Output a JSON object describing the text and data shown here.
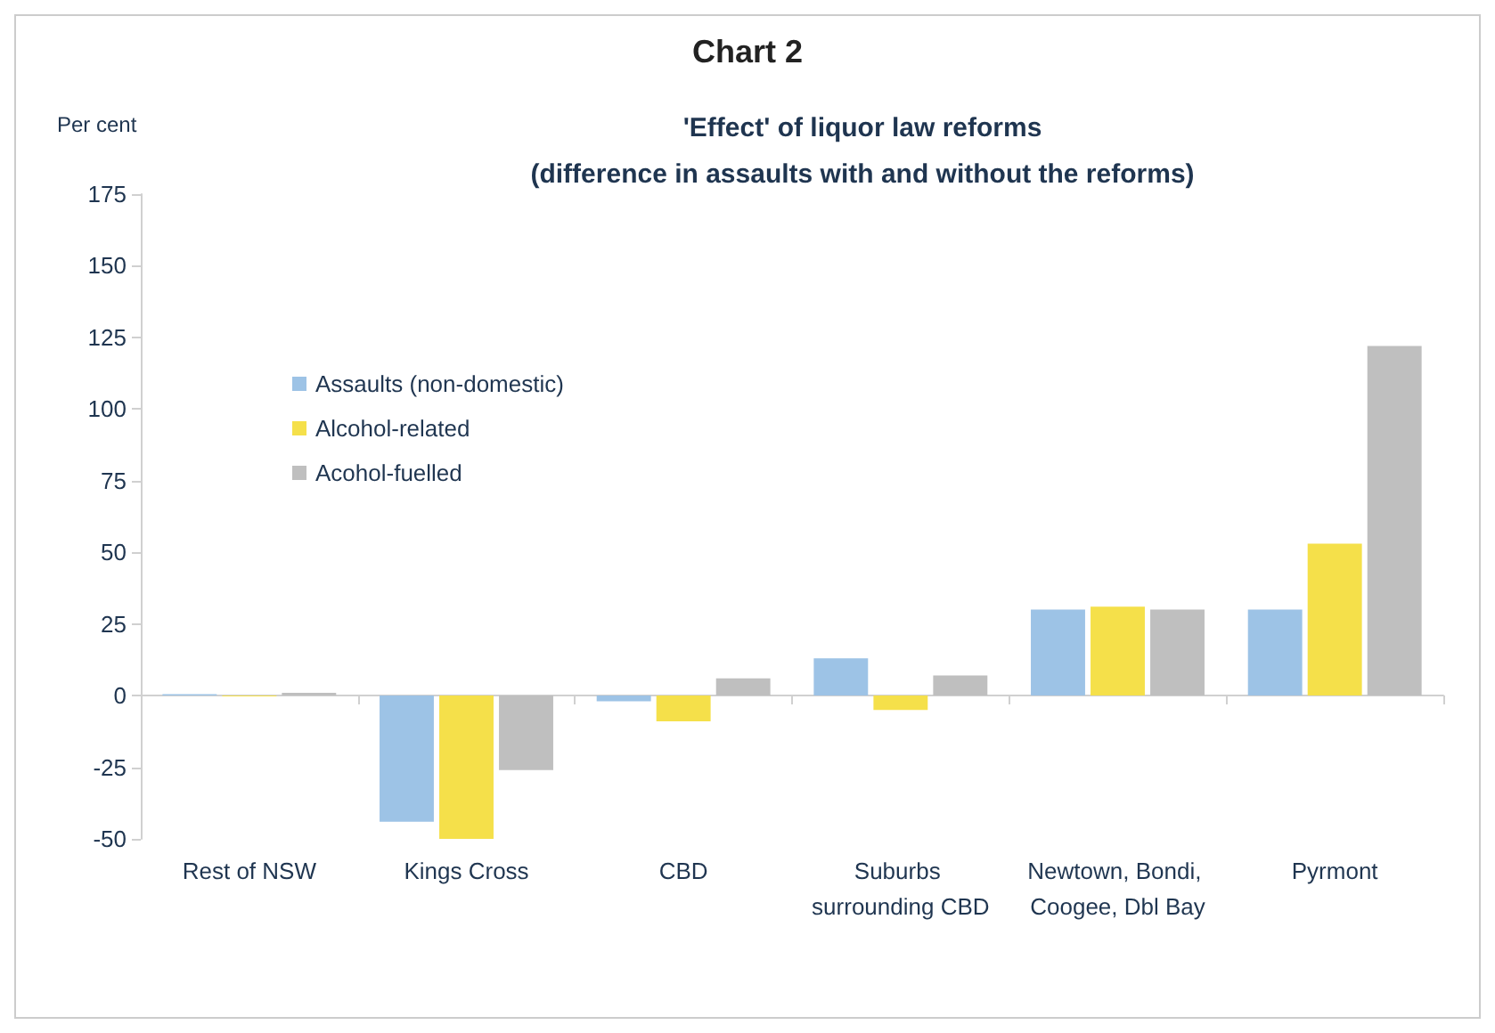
{
  "chart_data": {
    "type": "bar",
    "title": "Chart 2",
    "subtitle": "'Effect' of liquor law reforms\n(difference in assaults with and without the reforms)",
    "ylabel": "Per cent",
    "categories": [
      "Rest of NSW",
      "Kings Cross",
      "CBD",
      "Suburbs surrounding CBD",
      "Newtown, Bondi, Coogee, Dbl Bay",
      "Pyrmont"
    ],
    "series": [
      {
        "name": "Assaults (non-domestic)",
        "color": "#9dc3e6",
        "values": [
          0.5,
          -44,
          -2,
          13,
          30,
          30
        ]
      },
      {
        "name": "Alcohol-related",
        "color": "#f5e04a",
        "values": [
          -0.3,
          -50,
          -9,
          -5,
          31,
          53
        ]
      },
      {
        "name": "Acohol-fuelled",
        "color": "#bfbfbf",
        "values": [
          1,
          -26,
          6,
          7,
          30,
          122
        ]
      }
    ],
    "ylim": [
      -50,
      175
    ],
    "yticks": [
      -50,
      -25,
      0,
      25,
      50,
      75,
      100,
      125,
      150,
      175
    ],
    "legend": "left"
  }
}
